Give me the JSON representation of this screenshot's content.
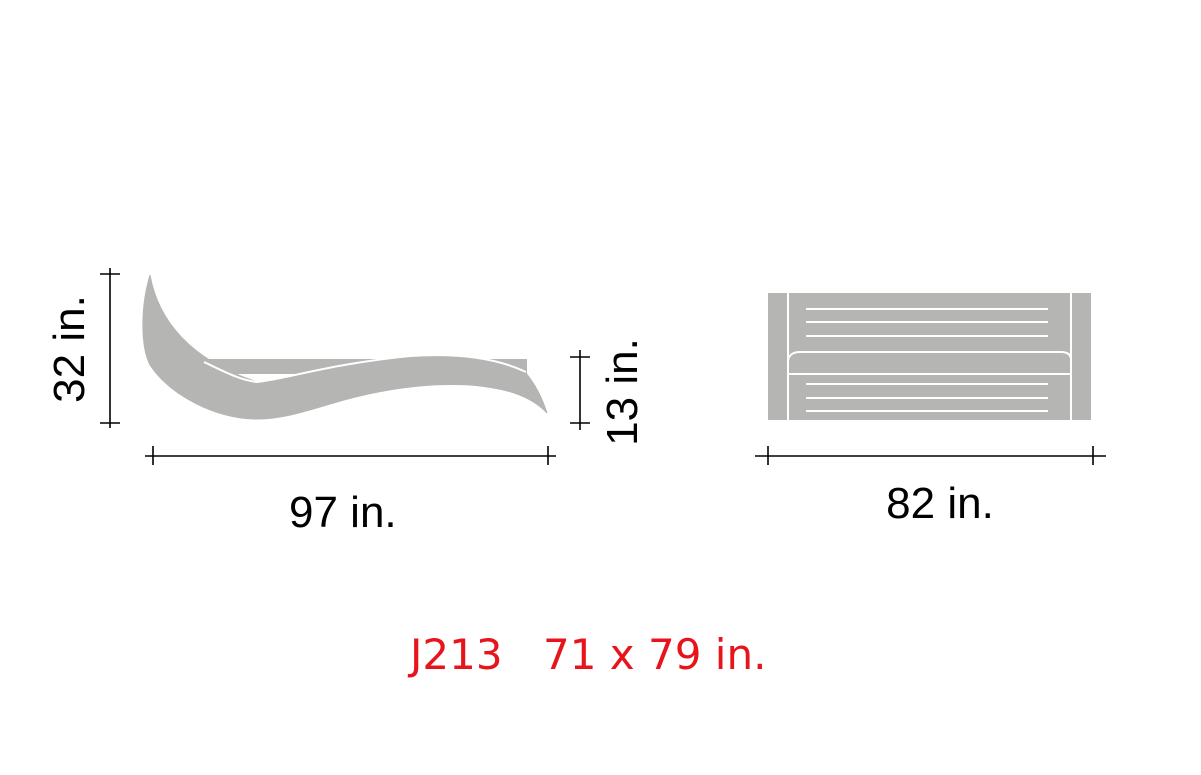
{
  "side_view": {
    "height_label": "32 in.",
    "seat_height_label": "13 in.",
    "length_label": "97 in."
  },
  "top_view": {
    "width_label": "82 in."
  },
  "model": {
    "code": "J213",
    "size": "71 x 79 in."
  },
  "colors": {
    "furniture_fill": "#b5b5b4",
    "furniture_line": "#ffffff",
    "dimension_line": "#000000",
    "model_text": "#e8141b"
  }
}
